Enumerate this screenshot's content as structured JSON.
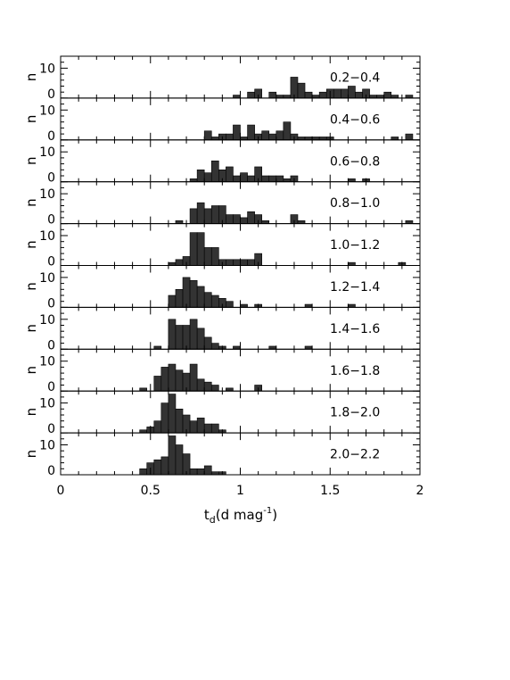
{
  "chart_data": {
    "type": "bar",
    "xlabel": "t_d(d mag^-1)",
    "xlabel_main": "t",
    "xlabel_sub": "d",
    "xlabel_rest": "(d mag",
    "xlabel_sup": "-1",
    "xlabel_close": ")",
    "ylabel": "n",
    "xlim": [
      0,
      2
    ],
    "ylim": [
      0,
      14
    ],
    "bin_width": 0.04,
    "x_ticks": [
      0,
      0.5,
      1,
      1.5,
      2
    ],
    "x_tick_labels": [
      "0",
      "0.5",
      "1",
      "1.5",
      "2"
    ],
    "y_ticks": [
      0,
      10
    ],
    "y_tick_labels": [
      "0",
      "10"
    ],
    "fill": "#333333",
    "edge": "#000000",
    "panels": [
      {
        "label": "0.2−0.4",
        "bins": [
          [
            0.96,
            1
          ],
          [
            1.04,
            2
          ],
          [
            1.08,
            3
          ],
          [
            1.16,
            2
          ],
          [
            1.2,
            1
          ],
          [
            1.24,
            1
          ],
          [
            1.28,
            7
          ],
          [
            1.32,
            5
          ],
          [
            1.36,
            2
          ],
          [
            1.4,
            1
          ],
          [
            1.44,
            2
          ],
          [
            1.48,
            3
          ],
          [
            1.52,
            3
          ],
          [
            1.56,
            3
          ],
          [
            1.6,
            4
          ],
          [
            1.64,
            2
          ],
          [
            1.68,
            3
          ],
          [
            1.72,
            1
          ],
          [
            1.76,
            1
          ],
          [
            1.8,
            2
          ],
          [
            1.84,
            1
          ],
          [
            1.92,
            1
          ]
        ]
      },
      {
        "label": "0.4−0.6",
        "bins": [
          [
            0.8,
            3
          ],
          [
            0.84,
            1
          ],
          [
            0.88,
            2
          ],
          [
            0.92,
            2
          ],
          [
            0.96,
            5
          ],
          [
            1.0,
            1
          ],
          [
            1.04,
            5
          ],
          [
            1.08,
            2
          ],
          [
            1.12,
            3
          ],
          [
            1.16,
            2
          ],
          [
            1.2,
            3
          ],
          [
            1.24,
            6
          ],
          [
            1.28,
            2
          ],
          [
            1.32,
            1
          ],
          [
            1.36,
            1
          ],
          [
            1.4,
            1
          ],
          [
            1.44,
            1
          ],
          [
            1.48,
            1
          ],
          [
            1.84,
            1
          ],
          [
            1.92,
            2
          ]
        ]
      },
      {
        "label": "0.6−0.8",
        "bins": [
          [
            0.72,
            1
          ],
          [
            0.76,
            4
          ],
          [
            0.8,
            3
          ],
          [
            0.84,
            7
          ],
          [
            0.88,
            4
          ],
          [
            0.92,
            5
          ],
          [
            0.96,
            2
          ],
          [
            1.0,
            3
          ],
          [
            1.04,
            2
          ],
          [
            1.08,
            5
          ],
          [
            1.12,
            2
          ],
          [
            1.16,
            2
          ],
          [
            1.2,
            2
          ],
          [
            1.24,
            1
          ],
          [
            1.28,
            2
          ],
          [
            1.6,
            1
          ],
          [
            1.68,
            1
          ]
        ]
      },
      {
        "label": "0.8−1.0",
        "bins": [
          [
            0.64,
            1
          ],
          [
            0.72,
            5
          ],
          [
            0.76,
            7
          ],
          [
            0.8,
            5
          ],
          [
            0.84,
            6
          ],
          [
            0.88,
            6
          ],
          [
            0.92,
            3
          ],
          [
            0.96,
            3
          ],
          [
            1.0,
            2
          ],
          [
            1.04,
            4
          ],
          [
            1.08,
            3
          ],
          [
            1.12,
            1
          ],
          [
            1.28,
            3
          ],
          [
            1.32,
            1
          ],
          [
            1.92,
            1
          ]
        ]
      },
      {
        "label": "1.0−1.2",
        "bins": [
          [
            0.6,
            1
          ],
          [
            0.64,
            2
          ],
          [
            0.68,
            3
          ],
          [
            0.72,
            11
          ],
          [
            0.76,
            11
          ],
          [
            0.8,
            6
          ],
          [
            0.84,
            6
          ],
          [
            0.88,
            2
          ],
          [
            0.92,
            2
          ],
          [
            0.96,
            2
          ],
          [
            1.0,
            2
          ],
          [
            1.04,
            2
          ],
          [
            1.08,
            4
          ],
          [
            1.6,
            1
          ],
          [
            1.88,
            1
          ]
        ]
      },
      {
        "label": "1.2−1.4",
        "bins": [
          [
            0.6,
            4
          ],
          [
            0.64,
            6
          ],
          [
            0.68,
            10
          ],
          [
            0.72,
            9
          ],
          [
            0.76,
            7
          ],
          [
            0.8,
            5
          ],
          [
            0.84,
            4
          ],
          [
            0.88,
            3
          ],
          [
            0.92,
            2
          ],
          [
            1.0,
            1
          ],
          [
            1.08,
            1
          ],
          [
            1.36,
            1
          ],
          [
            1.6,
            1
          ]
        ]
      },
      {
        "label": "1.4−1.6",
        "bins": [
          [
            0.52,
            1
          ],
          [
            0.6,
            10
          ],
          [
            0.64,
            8
          ],
          [
            0.68,
            8
          ],
          [
            0.72,
            10
          ],
          [
            0.76,
            7
          ],
          [
            0.8,
            4
          ],
          [
            0.84,
            2
          ],
          [
            0.88,
            1
          ],
          [
            0.96,
            1
          ],
          [
            1.16,
            1
          ],
          [
            1.36,
            1
          ]
        ]
      },
      {
        "label": "1.6−1.8",
        "bins": [
          [
            0.44,
            1
          ],
          [
            0.52,
            5
          ],
          [
            0.56,
            8
          ],
          [
            0.6,
            9
          ],
          [
            0.64,
            7
          ],
          [
            0.68,
            6
          ],
          [
            0.72,
            9
          ],
          [
            0.76,
            4
          ],
          [
            0.8,
            3
          ],
          [
            0.84,
            2
          ],
          [
            0.92,
            1
          ],
          [
            1.08,
            2
          ]
        ]
      },
      {
        "label": "1.8−2.0",
        "bins": [
          [
            0.44,
            1
          ],
          [
            0.48,
            2
          ],
          [
            0.52,
            4
          ],
          [
            0.56,
            10
          ],
          [
            0.6,
            13
          ],
          [
            0.64,
            8
          ],
          [
            0.68,
            6
          ],
          [
            0.72,
            4
          ],
          [
            0.76,
            5
          ],
          [
            0.8,
            3
          ],
          [
            0.84,
            3
          ],
          [
            0.88,
            1
          ]
        ]
      },
      {
        "label": "2.0−2.2",
        "bins": [
          [
            0.44,
            2
          ],
          [
            0.48,
            4
          ],
          [
            0.52,
            5
          ],
          [
            0.56,
            6
          ],
          [
            0.6,
            13
          ],
          [
            0.64,
            10
          ],
          [
            0.68,
            7
          ],
          [
            0.72,
            2
          ],
          [
            0.76,
            2
          ],
          [
            0.8,
            3
          ],
          [
            0.84,
            1
          ],
          [
            0.88,
            1
          ]
        ]
      }
    ]
  }
}
